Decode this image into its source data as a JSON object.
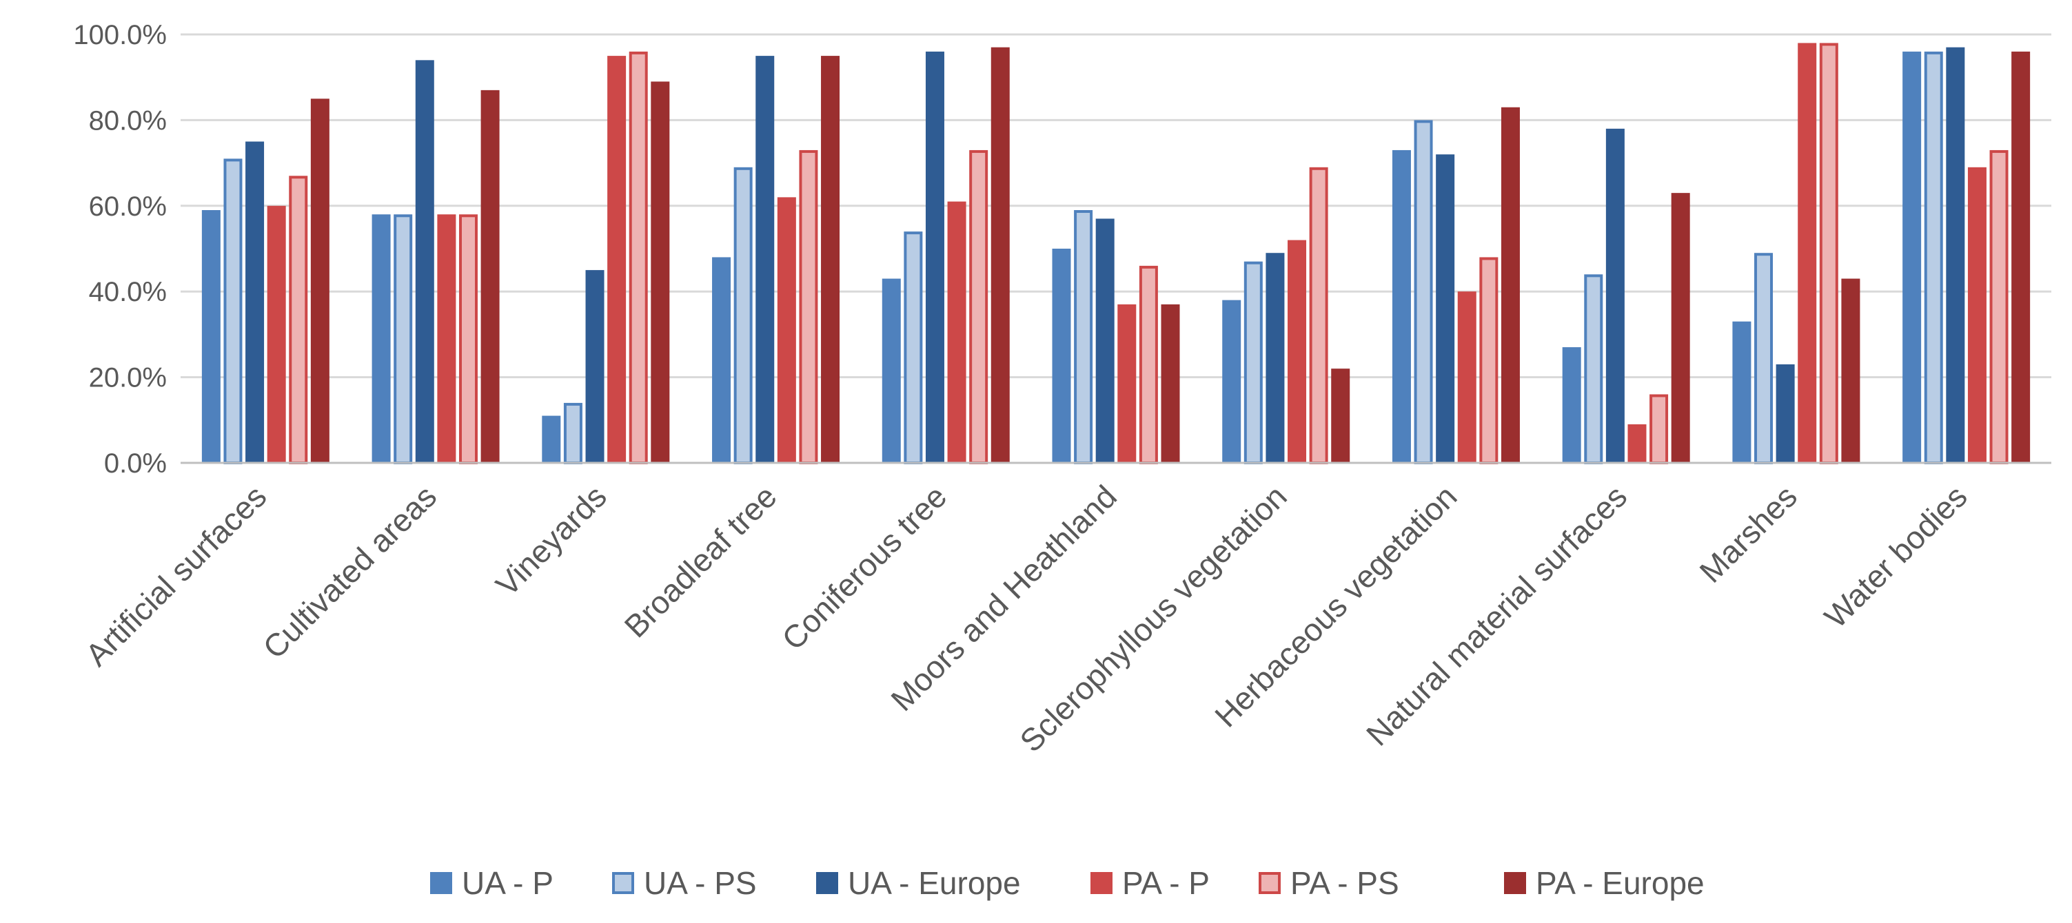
{
  "chart_data": {
    "type": "bar",
    "title": "",
    "xlabel": "",
    "ylabel": "",
    "ylim": [
      0,
      100
    ],
    "y_ticks": [
      0,
      20,
      40,
      60,
      80,
      100
    ],
    "y_tick_labels": [
      "0.0%",
      "20.0%",
      "40.0%",
      "60.0%",
      "80.0%",
      "100.0%"
    ],
    "grid": true,
    "legend_position": "bottom",
    "categories": [
      "Artificial surfaces",
      "Cultivated areas",
      "Vineyards",
      "Broadleaf tree",
      "Coniferous tree",
      "Moors and Heathland",
      "Sclerophyllous vegetation",
      "Herbaceous vegetation",
      "Natural material surfaces",
      "Marshes",
      "Water bodies"
    ],
    "series": [
      {
        "name": "UA - P",
        "fill": "#4f81bd",
        "stroke": "#4f81bd",
        "values": [
          59,
          58,
          11,
          48,
          43,
          50,
          38,
          73,
          27,
          33,
          96
        ]
      },
      {
        "name": "UA - PS",
        "fill": "#b9cde5",
        "stroke": "#4f81bd",
        "values": [
          71,
          58,
          14,
          69,
          54,
          59,
          47,
          80,
          44,
          49,
          96
        ]
      },
      {
        "name": "UA - Europe",
        "fill": "#2f5c93",
        "stroke": "#2f5c93",
        "values": [
          75,
          94,
          45,
          95,
          96,
          57,
          49,
          72,
          78,
          23,
          97
        ]
      },
      {
        "name": "PA - P",
        "fill": "#cd4848",
        "stroke": "#cd4848",
        "values": [
          60,
          58,
          95,
          62,
          61,
          37,
          52,
          40,
          9,
          98,
          69
        ]
      },
      {
        "name": "PA - PS",
        "fill": "#eeb3b3",
        "stroke": "#cd4848",
        "values": [
          67,
          58,
          96,
          73,
          73,
          46,
          69,
          48,
          16,
          98,
          73
        ]
      },
      {
        "name": "PA - Europe",
        "fill": "#9b2f2f",
        "stroke": "#9b2f2f",
        "values": [
          85,
          87,
          89,
          95,
          97,
          37,
          22,
          83,
          63,
          43,
          96
        ]
      }
    ]
  }
}
